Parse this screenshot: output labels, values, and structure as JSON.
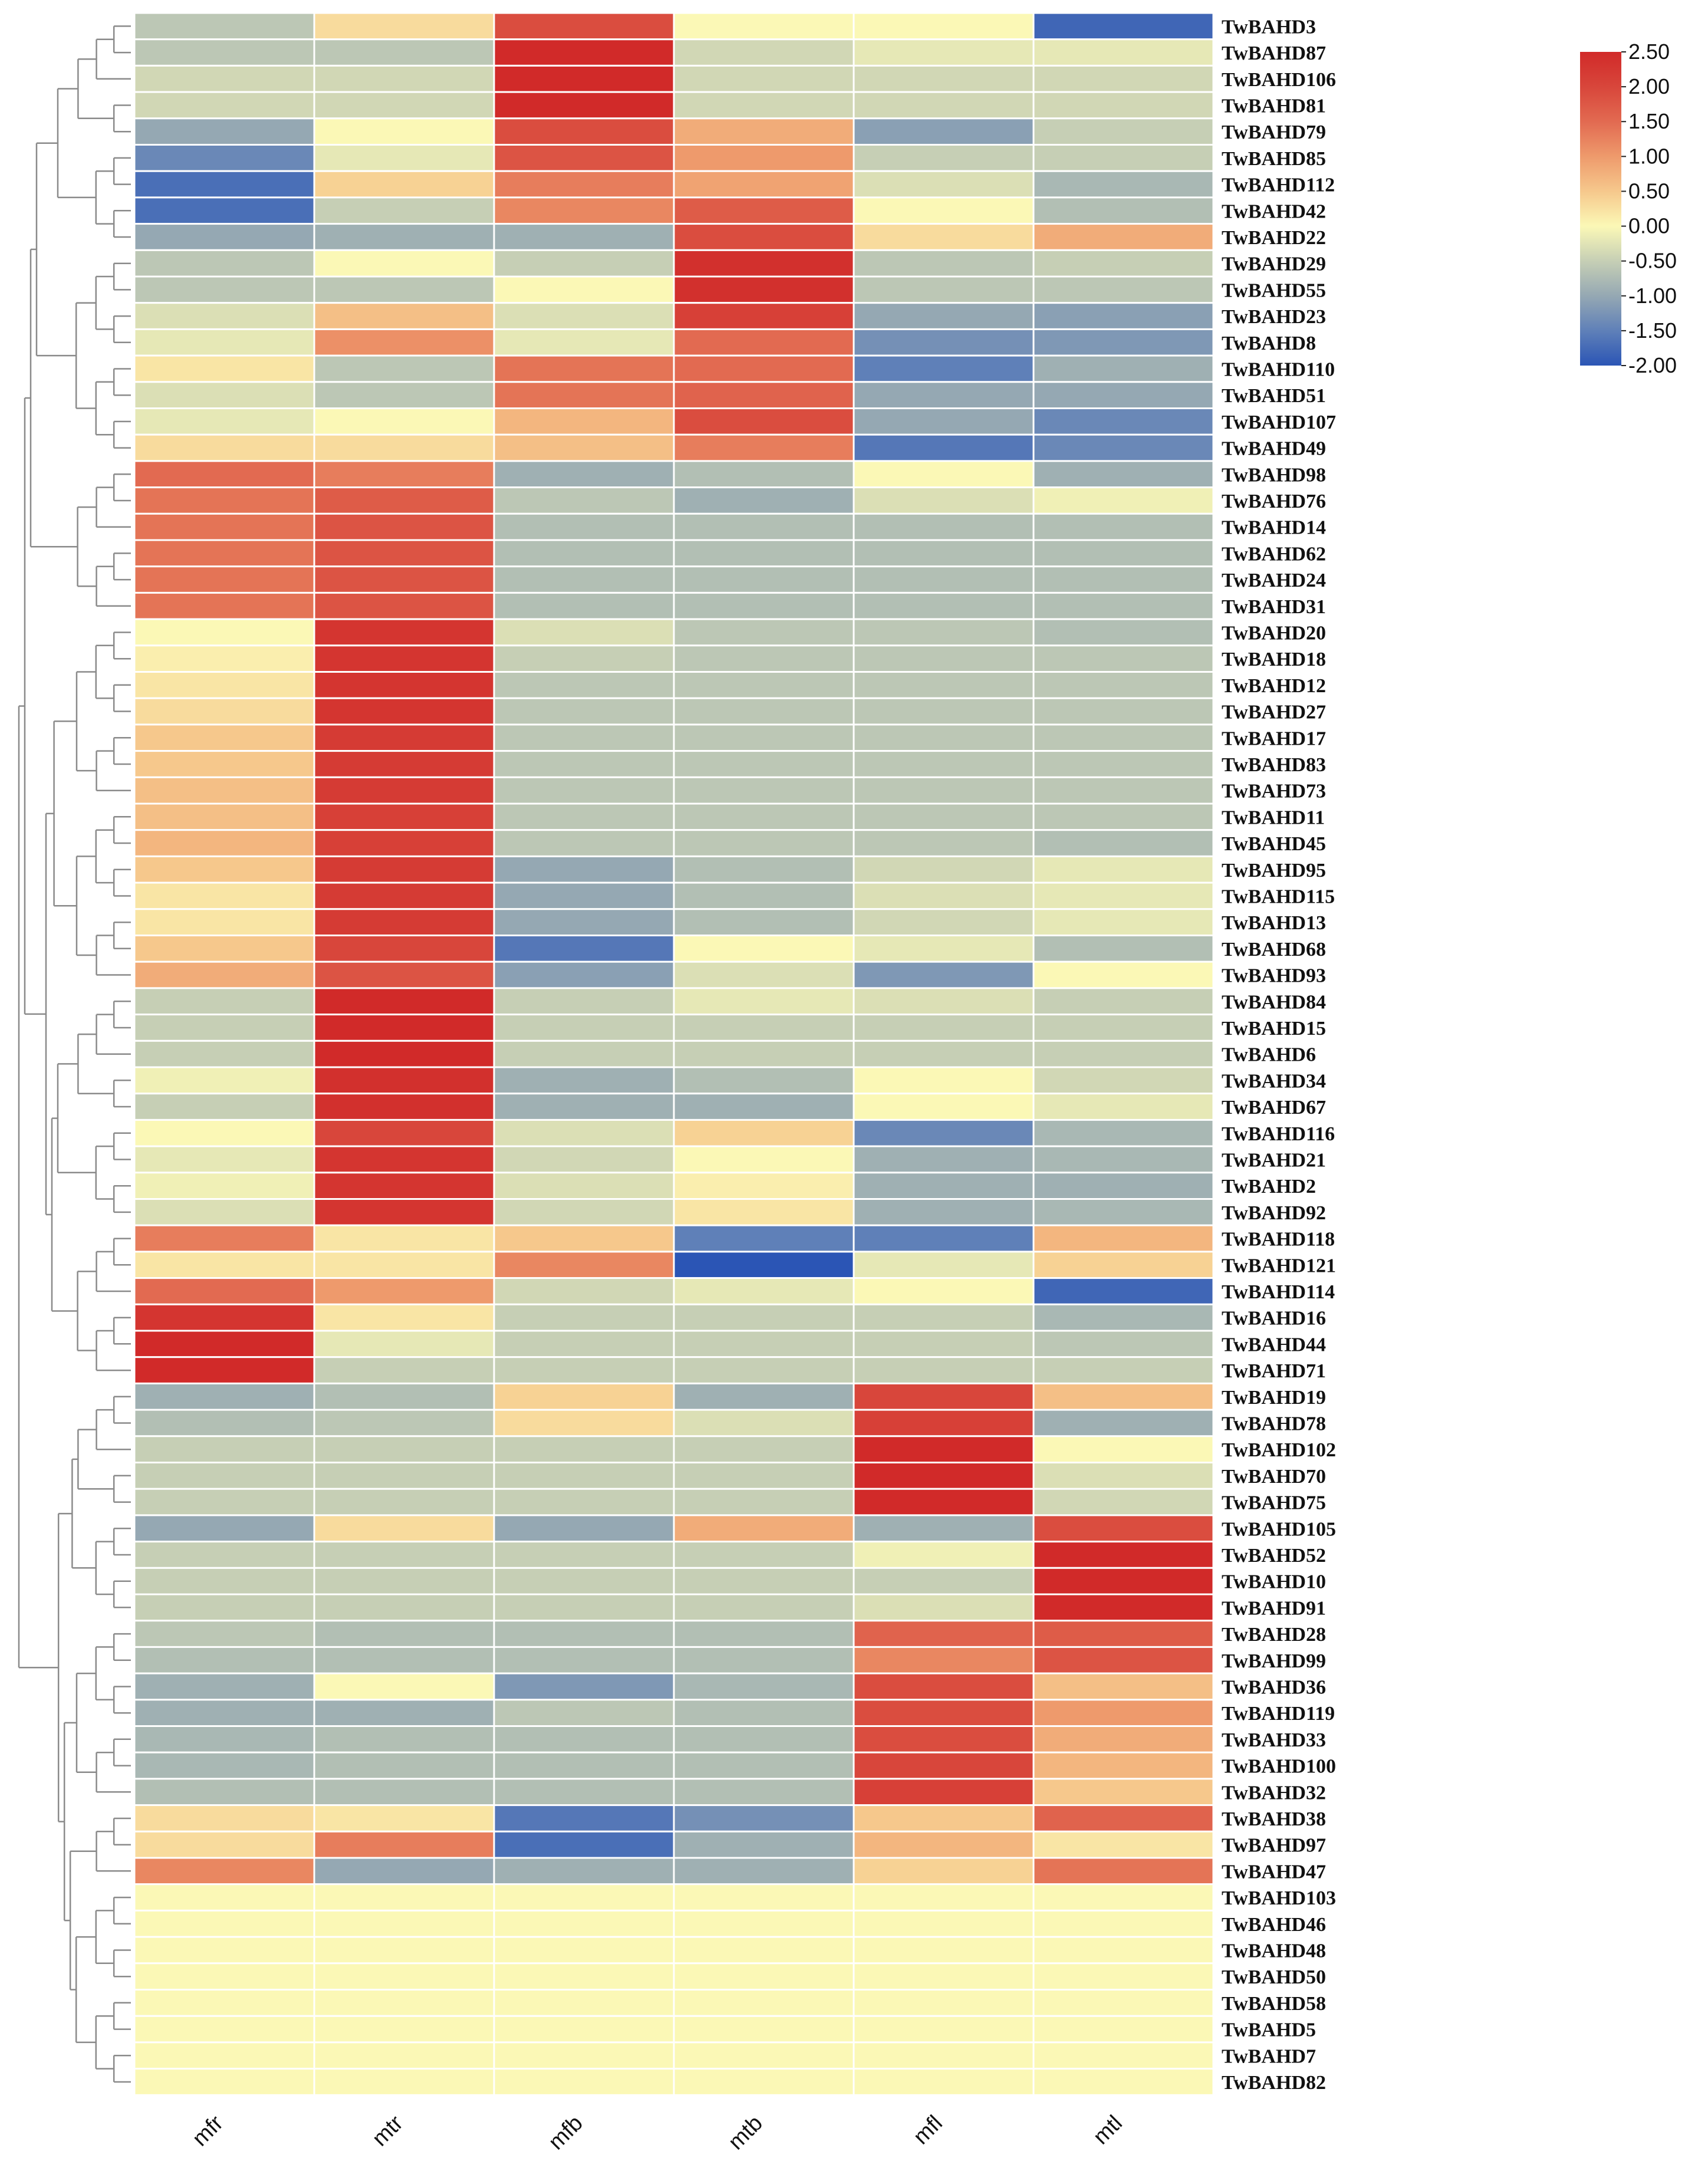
{
  "chart_data": {
    "type": "heatmap",
    "title": "",
    "xlabel": "",
    "ylabel": "",
    "columns": [
      "mfr",
      "mtr",
      "mfb",
      "mtb",
      "mfl",
      "mtl"
    ],
    "rows": [
      "TwBAHD3",
      "TwBAHD87",
      "TwBAHD106",
      "TwBAHD81",
      "TwBAHD79",
      "TwBAHD85",
      "TwBAHD112",
      "TwBAHD42",
      "TwBAHD22",
      "TwBAHD29",
      "TwBAHD55",
      "TwBAHD23",
      "TwBAHD8",
      "TwBAHD110",
      "TwBAHD51",
      "TwBAHD107",
      "TwBAHD49",
      "TwBAHD98",
      "TwBAHD76",
      "TwBAHD14",
      "TwBAHD62",
      "TwBAHD24",
      "TwBAHD31",
      "TwBAHD20",
      "TwBAHD18",
      "TwBAHD12",
      "TwBAHD27",
      "TwBAHD17",
      "TwBAHD83",
      "TwBAHD73",
      "TwBAHD11",
      "TwBAHD45",
      "TwBAHD95",
      "TwBAHD115",
      "TwBAHD13",
      "TwBAHD68",
      "TwBAHD93",
      "TwBAHD84",
      "TwBAHD15",
      "TwBAHD6",
      "TwBAHD34",
      "TwBAHD67",
      "TwBAHD116",
      "TwBAHD21",
      "TwBAHD2",
      "TwBAHD92",
      "TwBAHD118",
      "TwBAHD121",
      "TwBAHD114",
      "TwBAHD16",
      "TwBAHD44",
      "TwBAHD71",
      "TwBAHD19",
      "TwBAHD78",
      "TwBAHD102",
      "TwBAHD70",
      "TwBAHD75",
      "TwBAHD105",
      "TwBAHD52",
      "TwBAHD10",
      "TwBAHD91",
      "TwBAHD28",
      "TwBAHD99",
      "TwBAHD36",
      "TwBAHD119",
      "TwBAHD33",
      "TwBAHD100",
      "TwBAHD32",
      "TwBAHD38",
      "TwBAHD97",
      "TwBAHD47",
      "TwBAHD103",
      "TwBAHD46",
      "TwBAHD48",
      "TwBAHD50",
      "TwBAHD58",
      "TwBAHD5",
      "TwBAHD7",
      "TwBAHD82"
    ],
    "values": [
      [
        -0.6,
        0.3,
        1.9,
        0.0,
        0.0,
        -1.8
      ],
      [
        -0.6,
        -0.6,
        2.5,
        -0.4,
        -0.2,
        -0.2
      ],
      [
        -0.4,
        -0.4,
        2.5,
        -0.4,
        -0.4,
        -0.4
      ],
      [
        -0.4,
        -0.4,
        2.5,
        -0.4,
        -0.4,
        -0.4
      ],
      [
        -1.0,
        0.0,
        1.9,
        0.8,
        -1.1,
        -0.5
      ],
      [
        -1.4,
        -0.2,
        1.8,
        1.0,
        -0.5,
        -0.5
      ],
      [
        -1.7,
        0.4,
        1.3,
        0.9,
        -0.3,
        -0.8
      ],
      [
        -1.7,
        -0.5,
        1.2,
        1.7,
        0.0,
        -0.7
      ],
      [
        -1.0,
        -0.9,
        -0.9,
        1.9,
        0.3,
        0.8
      ],
      [
        -0.6,
        0.0,
        -0.5,
        2.4,
        -0.6,
        -0.5
      ],
      [
        -0.6,
        -0.6,
        0.0,
        2.4,
        -0.6,
        -0.6
      ],
      [
        -0.3,
        0.6,
        -0.3,
        2.1,
        -1.0,
        -1.1
      ],
      [
        -0.2,
        1.1,
        -0.2,
        1.5,
        -1.3,
        -1.2
      ],
      [
        0.2,
        -0.6,
        1.4,
        1.5,
        -1.5,
        -0.9
      ],
      [
        -0.3,
        -0.6,
        1.4,
        1.6,
        -1.0,
        -1.0
      ],
      [
        -0.2,
        0.0,
        0.7,
        1.9,
        -1.0,
        -1.4
      ],
      [
        0.3,
        0.3,
        0.6,
        1.3,
        -1.6,
        -1.4
      ],
      [
        1.5,
        1.3,
        -0.9,
        -0.7,
        0.0,
        -0.9
      ],
      [
        1.4,
        1.7,
        -0.6,
        -0.9,
        -0.3,
        -0.1
      ],
      [
        1.4,
        1.8,
        -0.7,
        -0.7,
        -0.7,
        -0.7
      ],
      [
        1.4,
        1.8,
        -0.7,
        -0.7,
        -0.7,
        -0.7
      ],
      [
        1.4,
        1.8,
        -0.7,
        -0.7,
        -0.7,
        -0.7
      ],
      [
        1.4,
        1.8,
        -0.7,
        -0.7,
        -0.7,
        -0.7
      ],
      [
        0.0,
        2.3,
        -0.3,
        -0.6,
        -0.6,
        -0.7
      ],
      [
        0.1,
        2.3,
        -0.5,
        -0.6,
        -0.6,
        -0.6
      ],
      [
        0.2,
        2.3,
        -0.6,
        -0.6,
        -0.6,
        -0.6
      ],
      [
        0.3,
        2.3,
        -0.6,
        -0.6,
        -0.6,
        -0.6
      ],
      [
        0.5,
        2.2,
        -0.6,
        -0.6,
        -0.6,
        -0.6
      ],
      [
        0.5,
        2.2,
        -0.6,
        -0.6,
        -0.6,
        -0.6
      ],
      [
        0.6,
        2.2,
        -0.6,
        -0.6,
        -0.6,
        -0.6
      ],
      [
        0.6,
        2.1,
        -0.6,
        -0.6,
        -0.6,
        -0.6
      ],
      [
        0.7,
        2.1,
        -0.6,
        -0.6,
        -0.6,
        -0.7
      ],
      [
        0.5,
        2.2,
        -1.0,
        -0.7,
        -0.4,
        -0.2
      ],
      [
        0.2,
        2.2,
        -1.0,
        -0.7,
        -0.3,
        -0.2
      ],
      [
        0.2,
        2.2,
        -1.0,
        -0.7,
        -0.4,
        -0.2
      ],
      [
        0.5,
        2.0,
        -1.6,
        0.0,
        -0.2,
        -0.7
      ],
      [
        0.8,
        1.8,
        -1.1,
        -0.3,
        -1.2,
        0.0
      ],
      [
        -0.5,
        2.5,
        -0.5,
        -0.2,
        -0.3,
        -0.5
      ],
      [
        -0.5,
        2.5,
        -0.5,
        -0.5,
        -0.5,
        -0.5
      ],
      [
        -0.5,
        2.5,
        -0.5,
        -0.5,
        -0.5,
        -0.5
      ],
      [
        -0.1,
        2.4,
        -0.9,
        -0.7,
        0.0,
        -0.4
      ],
      [
        -0.5,
        2.4,
        -0.9,
        -0.9,
        0.0,
        -0.2
      ],
      [
        0.0,
        2.0,
        -0.3,
        0.4,
        -1.4,
        -0.8
      ],
      [
        -0.2,
        2.3,
        -0.4,
        0.0,
        -0.9,
        -0.8
      ],
      [
        -0.1,
        2.3,
        -0.3,
        0.1,
        -0.9,
        -0.9
      ],
      [
        -0.3,
        2.3,
        -0.4,
        0.2,
        -0.9,
        -0.8
      ],
      [
        1.3,
        0.2,
        0.5,
        -1.5,
        -1.5,
        0.7
      ],
      [
        0.2,
        0.2,
        1.2,
        -2.0,
        -0.2,
        0.4
      ],
      [
        1.5,
        1.0,
        -0.4,
        -0.2,
        0.0,
        -1.8
      ],
      [
        2.3,
        0.2,
        -0.5,
        -0.5,
        -0.5,
        -0.8
      ],
      [
        2.5,
        -0.2,
        -0.5,
        -0.5,
        -0.5,
        -0.6
      ],
      [
        2.5,
        -0.5,
        -0.5,
        -0.5,
        -0.5,
        -0.5
      ],
      [
        -0.9,
        -0.7,
        0.4,
        -0.9,
        2.0,
        0.6
      ],
      [
        -0.7,
        -0.6,
        0.3,
        -0.3,
        2.1,
        -0.9
      ],
      [
        -0.5,
        -0.5,
        -0.5,
        -0.5,
        2.5,
        0.0
      ],
      [
        -0.5,
        -0.5,
        -0.5,
        -0.5,
        2.5,
        -0.3
      ],
      [
        -0.5,
        -0.5,
        -0.5,
        -0.5,
        2.5,
        -0.4
      ],
      [
        -1.0,
        0.3,
        -1.0,
        0.8,
        -0.9,
        1.9
      ],
      [
        -0.5,
        -0.5,
        -0.5,
        -0.5,
        -0.1,
        2.5
      ],
      [
        -0.5,
        -0.5,
        -0.5,
        -0.5,
        -0.5,
        2.5
      ],
      [
        -0.5,
        -0.5,
        -0.5,
        -0.5,
        -0.3,
        2.5
      ],
      [
        -0.6,
        -0.7,
        -0.7,
        -0.7,
        1.6,
        1.7
      ],
      [
        -0.7,
        -0.7,
        -0.7,
        -0.7,
        1.2,
        1.8
      ],
      [
        -0.9,
        0.0,
        -1.2,
        -0.8,
        1.9,
        0.6
      ],
      [
        -0.9,
        -0.9,
        -0.6,
        -0.7,
        1.9,
        1.0
      ],
      [
        -0.8,
        -0.7,
        -0.7,
        -0.7,
        1.9,
        0.8
      ],
      [
        -0.8,
        -0.7,
        -0.7,
        -0.7,
        2.0,
        0.7
      ],
      [
        -0.7,
        -0.7,
        -0.7,
        -0.7,
        2.1,
        0.5
      ],
      [
        0.3,
        0.2,
        -1.6,
        -1.3,
        0.5,
        1.6
      ],
      [
        0.3,
        1.3,
        -1.7,
        -0.9,
        0.7,
        0.2
      ],
      [
        1.2,
        -1.0,
        -0.9,
        -0.9,
        0.4,
        1.4
      ],
      [
        0.0,
        0.0,
        0.0,
        0.0,
        0.0,
        0.0
      ],
      [
        0.0,
        0.0,
        0.0,
        0.0,
        0.0,
        0.0
      ],
      [
        0.0,
        0.0,
        0.0,
        0.0,
        0.0,
        0.0
      ],
      [
        0.0,
        0.0,
        0.0,
        0.0,
        0.0,
        0.0
      ],
      [
        0.0,
        0.0,
        0.0,
        0.0,
        0.0,
        0.0
      ],
      [
        0.0,
        0.0,
        0.0,
        0.0,
        0.0,
        0.0
      ],
      [
        0.0,
        0.0,
        0.0,
        0.0,
        0.0,
        0.0
      ],
      [
        0.0,
        0.0,
        0.0,
        0.0,
        0.0,
        0.0
      ]
    ],
    "color_scale": {
      "min": -2.0,
      "max": 2.5,
      "stops": [
        {
          "value": -2.0,
          "color": "#2b55b5"
        },
        {
          "value": -1.5,
          "color": "#5f80b8"
        },
        {
          "value": -1.0,
          "color": "#95a8b3"
        },
        {
          "value": -0.5,
          "color": "#c6cfb5"
        },
        {
          "value": 0.0,
          "color": "#fbf8b6"
        },
        {
          "value": 0.5,
          "color": "#f6c88c"
        },
        {
          "value": 1.0,
          "color": "#ee9a6c"
        },
        {
          "value": 1.5,
          "color": "#e26a51"
        },
        {
          "value": 2.0,
          "color": "#d8463b"
        },
        {
          "value": 2.5,
          "color": "#d12a29"
        }
      ]
    },
    "legend": {
      "position": "top-right",
      "ticks": [
        "2.50",
        "2.00",
        "1.50",
        "1.00",
        "0.50",
        "0.00",
        "-0.50",
        "-1.00",
        "-1.50",
        "-2.00"
      ]
    },
    "dendrogram_side": "left"
  }
}
